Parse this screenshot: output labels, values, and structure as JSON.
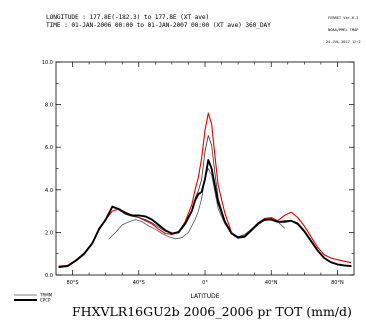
{
  "header": {
    "line1": "LONGITUDE : 177.8E(-182.3) to 177.8E (XT ave)",
    "line2": "TIME : 01-JAN-2006 00:00 to 01-JAN-2007 00:00 (XT ave) 360_DAY"
  },
  "corner": {
    "line1": "FERRET Ver.6.3",
    "line2": "NOAA/PMEL TMAP",
    "line3": "24-JUL-2017 12:2"
  },
  "caption": "FHXVLR16GU2b 2006_2006 pr TOT (mm/d)",
  "chart_data": {
    "type": "line",
    "xlabel": "LATITUDE",
    "ylabel": "",
    "title": "",
    "xlim": [
      -90,
      90
    ],
    "ylim": [
      0,
      10
    ],
    "x_ticks": [
      {
        "value": -80,
        "label": "80°S"
      },
      {
        "value": -40,
        "label": "40°S"
      },
      {
        "value": 0,
        "label": "0°"
      },
      {
        "value": 40,
        "label": "40°N"
      },
      {
        "value": 80,
        "label": "80°N"
      }
    ],
    "y_ticks": [
      {
        "value": 0,
        "label": "0.0"
      },
      {
        "value": 2,
        "label": "2.0"
      },
      {
        "value": 4,
        "label": "4.0"
      },
      {
        "value": 6,
        "label": "6.0"
      },
      {
        "value": 8,
        "label": "8.0"
      },
      {
        "value": 10,
        "label": "10.0"
      }
    ],
    "legend_position": "bottom-left",
    "series": [
      {
        "name": "",
        "color": "#e00000",
        "width": 1.1,
        "x": [
          -88,
          -83,
          -78,
          -73,
          -68,
          -64,
          -60,
          -56,
          -52,
          -48,
          -44,
          -40,
          -36,
          -32,
          -28,
          -24,
          -20,
          -16,
          -12,
          -8,
          -6,
          -4,
          -2,
          0,
          2,
          4,
          6,
          8,
          12,
          16,
          20,
          24,
          28,
          32,
          36,
          40,
          44,
          48,
          52,
          56,
          60,
          64,
          68,
          72,
          76,
          80,
          84,
          88
        ],
        "y": [
          0.42,
          0.45,
          0.7,
          1.0,
          1.5,
          2.2,
          2.6,
          3.0,
          3.1,
          2.95,
          2.8,
          2.7,
          2.55,
          2.4,
          2.15,
          1.95,
          1.9,
          2.0,
          2.5,
          3.3,
          4.0,
          4.6,
          5.5,
          6.8,
          7.6,
          7.1,
          5.6,
          4.2,
          2.9,
          2.0,
          1.75,
          1.8,
          2.1,
          2.45,
          2.65,
          2.7,
          2.55,
          2.8,
          2.95,
          2.7,
          2.3,
          1.8,
          1.3,
          0.95,
          0.8,
          0.72,
          0.65,
          0.58
        ]
      },
      {
        "name": "",
        "color": "#555555",
        "width": 0.8,
        "x": [
          -58,
          -54,
          -50,
          -46,
          -42,
          -38,
          -34,
          -30,
          -26,
          -22,
          -18,
          -14,
          -10,
          -6,
          -4,
          -2,
          0,
          2,
          4,
          6,
          8,
          12,
          16,
          20,
          24,
          28,
          32,
          36,
          40,
          44,
          48
        ],
        "y": [
          1.7,
          2.0,
          2.35,
          2.5,
          2.6,
          2.5,
          2.3,
          2.15,
          1.95,
          1.8,
          1.7,
          1.75,
          2.0,
          2.6,
          3.0,
          3.6,
          4.6,
          5.0,
          4.7,
          3.9,
          3.1,
          2.4,
          1.95,
          1.8,
          1.9,
          2.15,
          2.4,
          2.55,
          2.6,
          2.5,
          2.2
        ]
      },
      {
        "name": "",
        "color": "#333333",
        "width": 0.8,
        "x": [
          -88,
          -83,
          -78,
          -73,
          -68,
          -64,
          -60,
          -56,
          -52,
          -48,
          -44,
          -40,
          -36,
          -32,
          -28,
          -24,
          -20,
          -16,
          -12,
          -8,
          -6,
          -4,
          -2,
          0,
          2,
          4,
          6,
          8,
          12,
          16,
          20,
          24,
          28,
          32,
          36,
          40,
          44,
          48,
          52,
          56,
          60,
          64,
          68,
          72,
          76,
          80,
          84,
          88
        ],
        "y": [
          0.35,
          0.4,
          0.65,
          0.95,
          1.45,
          2.1,
          2.6,
          3.25,
          3.05,
          2.85,
          2.75,
          2.7,
          2.6,
          2.45,
          2.25,
          2.05,
          1.95,
          2.05,
          2.45,
          3.05,
          3.6,
          3.95,
          4.5,
          5.8,
          6.55,
          6.1,
          4.8,
          3.6,
          2.55,
          2.0,
          1.8,
          1.85,
          2.15,
          2.45,
          2.6,
          2.65,
          2.5,
          2.55,
          2.55,
          2.45,
          2.1,
          1.65,
          1.15,
          0.8,
          0.6,
          0.5,
          0.45,
          0.4
        ]
      },
      {
        "name": "",
        "color": "#000000",
        "width": 1.9,
        "x": [
          -88,
          -83,
          -78,
          -73,
          -68,
          -64,
          -60,
          -56,
          -52,
          -48,
          -44,
          -40,
          -36,
          -32,
          -28,
          -24,
          -20,
          -16,
          -12,
          -8,
          -6,
          -4,
          -2,
          0,
          2,
          4,
          6,
          8,
          12,
          16,
          20,
          24,
          28,
          32,
          36,
          40,
          44,
          48,
          52,
          56,
          60,
          64,
          68,
          72,
          76,
          80,
          84,
          88
        ],
        "y": [
          0.38,
          0.42,
          0.68,
          1.0,
          1.5,
          2.15,
          2.6,
          3.2,
          3.1,
          2.9,
          2.8,
          2.8,
          2.75,
          2.6,
          2.35,
          2.1,
          1.95,
          2.0,
          2.4,
          3.0,
          3.5,
          3.8,
          3.9,
          4.5,
          5.4,
          5.0,
          4.2,
          3.4,
          2.5,
          1.95,
          1.75,
          1.8,
          2.1,
          2.4,
          2.6,
          2.6,
          2.5,
          2.5,
          2.55,
          2.4,
          2.05,
          1.6,
          1.15,
          0.8,
          0.6,
          0.5,
          0.45,
          0.42
        ]
      }
    ],
    "legend": [
      {
        "label": "TRMM",
        "color": "#555555",
        "width": 0.8
      },
      {
        "label": "CPCP",
        "color": "#000000",
        "width": 1.9
      }
    ]
  }
}
